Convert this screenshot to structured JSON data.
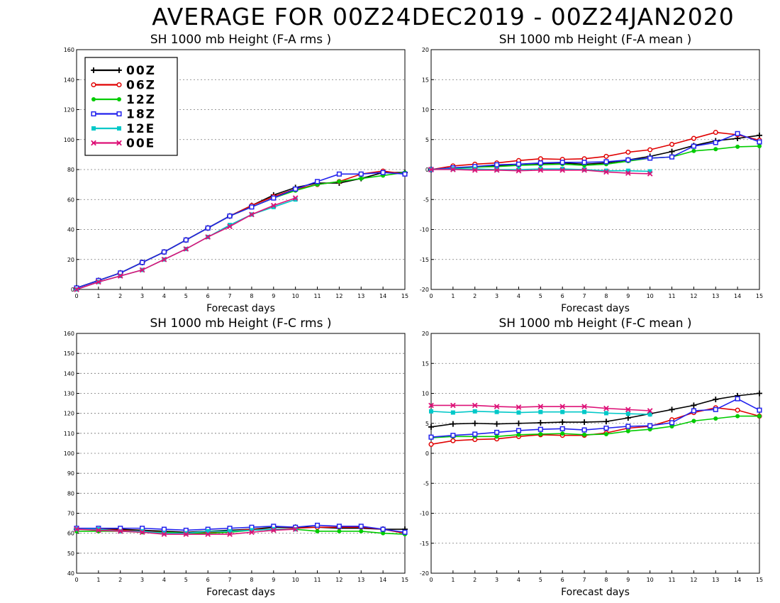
{
  "page": {
    "title": "AVERAGE FOR 00Z24DEC2019 - 00Z24JAN2020"
  },
  "colors": {
    "00Z": "#000000",
    "06Z": "#e00000",
    "12Z": "#00cc00",
    "18Z": "#2222ee",
    "12E": "#00c8c8",
    "00E": "#dd1177"
  },
  "legend": {
    "entries": [
      {
        "key": "00Z",
        "label": "00Z",
        "marker": "plus"
      },
      {
        "key": "06Z",
        "label": "06Z",
        "marker": "circle-open"
      },
      {
        "key": "12Z",
        "label": "12Z",
        "marker": "circle-filled"
      },
      {
        "key": "18Z",
        "label": "18Z",
        "marker": "square-open"
      },
      {
        "key": "12E",
        "label": "12E",
        "marker": "square-filled"
      },
      {
        "key": "00E",
        "label": "00E",
        "marker": "x"
      }
    ],
    "placement": "top-left of first panel"
  },
  "chart_data": [
    {
      "type": "line",
      "title": "SH 1000 mb Height (F-A rms )",
      "xlabel": "Forecast days",
      "ylabel": "",
      "xlim": [
        0,
        15
      ],
      "ylim": [
        0,
        160
      ],
      "xticks": [
        0,
        1,
        2,
        3,
        4,
        5,
        6,
        7,
        8,
        9,
        10,
        11,
        12,
        13,
        14,
        15
      ],
      "yticks": [
        0,
        20,
        40,
        60,
        80,
        100,
        120,
        140,
        160
      ],
      "grid": true,
      "legend": true,
      "series": [
        {
          "name": "00Z",
          "x": [
            0,
            1,
            2,
            3,
            4,
            5,
            6,
            7,
            8,
            9,
            10,
            11,
            12,
            13,
            14,
            15
          ],
          "values": [
            1,
            6,
            11,
            18,
            25,
            33,
            41,
            49,
            56,
            63,
            68,
            71,
            71,
            74,
            78,
            78
          ]
        },
        {
          "name": "06Z",
          "x": [
            0,
            1,
            2,
            3,
            4,
            5,
            6,
            7,
            8,
            9,
            10,
            11,
            12,
            13,
            14,
            15
          ],
          "values": [
            1,
            6,
            11,
            18,
            25,
            33,
            41,
            49,
            56,
            62,
            67,
            70,
            72,
            77,
            79,
            77
          ]
        },
        {
          "name": "12Z",
          "x": [
            0,
            1,
            2,
            3,
            4,
            5,
            6,
            7,
            8,
            9,
            10,
            11,
            12,
            13,
            14,
            15
          ],
          "values": [
            1,
            6,
            11,
            18,
            25,
            33,
            41,
            49,
            55,
            61,
            66,
            70,
            72,
            74,
            76,
            78
          ]
        },
        {
          "name": "18Z",
          "x": [
            0,
            1,
            2,
            3,
            4,
            5,
            6,
            7,
            8,
            9,
            10,
            11,
            12,
            13,
            14,
            15
          ],
          "values": [
            1,
            6,
            11,
            18,
            25,
            33,
            41,
            49,
            55,
            61,
            67,
            72,
            77,
            77,
            78,
            77
          ]
        },
        {
          "name": "12E",
          "x": [
            0,
            1,
            2,
            3,
            4,
            5,
            6,
            7,
            8,
            9,
            10
          ],
          "values": [
            0,
            5,
            9,
            13,
            20,
            27,
            35,
            43,
            50,
            55,
            60
          ]
        },
        {
          "name": "00E",
          "x": [
            0,
            1,
            2,
            3,
            4,
            5,
            6,
            7,
            8,
            9,
            10
          ],
          "values": [
            0,
            5,
            9,
            13,
            20,
            27,
            35,
            42,
            50,
            56,
            61
          ]
        }
      ]
    },
    {
      "type": "line",
      "title": "SH 1000 mb Height (F-A mean )",
      "xlabel": "Forecast days",
      "ylabel": "",
      "xlim": [
        0,
        15
      ],
      "ylim": [
        -20,
        20
      ],
      "xticks": [
        0,
        1,
        2,
        3,
        4,
        5,
        6,
        7,
        8,
        9,
        10,
        11,
        12,
        13,
        14,
        15
      ],
      "yticks": [
        -20,
        -15,
        -10,
        -5,
        0,
        5,
        10,
        15,
        20
      ],
      "grid": true,
      "legend": false,
      "series": [
        {
          "name": "00Z",
          "x": [
            0,
            1,
            2,
            3,
            4,
            5,
            6,
            7,
            8,
            9,
            10,
            11,
            12,
            13,
            14,
            15
          ],
          "values": [
            0,
            0.3,
            0.4,
            0.6,
            0.9,
            1.0,
            1.1,
            0.9,
            1.1,
            1.6,
            2.2,
            3.0,
            4.0,
            4.8,
            5.2,
            5.7
          ]
        },
        {
          "name": "06Z",
          "x": [
            0,
            1,
            2,
            3,
            4,
            5,
            6,
            7,
            8,
            9,
            10,
            11,
            12,
            13,
            14,
            15
          ],
          "values": [
            0,
            0.6,
            0.9,
            1.1,
            1.5,
            1.8,
            1.7,
            1.8,
            2.2,
            2.9,
            3.3,
            4.2,
            5.2,
            6.2,
            5.8,
            4.9
          ]
        },
        {
          "name": "12Z",
          "x": [
            0,
            1,
            2,
            3,
            4,
            5,
            6,
            7,
            8,
            9,
            10,
            11,
            12,
            13,
            14,
            15
          ],
          "values": [
            0,
            0.2,
            0.4,
            0.5,
            0.7,
            0.8,
            0.9,
            0.7,
            0.9,
            1.4,
            1.9,
            2.1,
            3.1,
            3.4,
            3.8,
            3.9
          ]
        },
        {
          "name": "18Z",
          "x": [
            0,
            1,
            2,
            3,
            4,
            5,
            6,
            7,
            8,
            9,
            10,
            11,
            12,
            13,
            14,
            15
          ],
          "values": [
            0,
            0.3,
            0.5,
            0.8,
            0.9,
            1.1,
            1.2,
            1.2,
            1.3,
            1.6,
            1.9,
            2.1,
            3.9,
            4.5,
            6.0,
            4.6
          ]
        },
        {
          "name": "12E",
          "x": [
            0,
            1,
            2,
            3,
            4,
            5,
            6,
            7,
            8,
            9,
            10
          ],
          "values": [
            0,
            0.1,
            0.1,
            0.0,
            0.0,
            0.1,
            0.1,
            0.0,
            -0.2,
            -0.2,
            -0.3
          ]
        },
        {
          "name": "00E",
          "x": [
            0,
            1,
            2,
            3,
            4,
            5,
            6,
            7,
            8,
            9,
            10
          ],
          "values": [
            0,
            0.0,
            -0.1,
            -0.1,
            -0.2,
            -0.1,
            -0.1,
            -0.1,
            -0.4,
            -0.6,
            -0.7
          ]
        }
      ]
    },
    {
      "type": "line",
      "title": "SH 1000 mb Height (F-C rms )",
      "xlabel": "Forecast days",
      "ylabel": "",
      "xlim": [
        0,
        15
      ],
      "ylim": [
        40,
        160
      ],
      "xticks": [
        0,
        1,
        2,
        3,
        4,
        5,
        6,
        7,
        8,
        9,
        10,
        11,
        12,
        13,
        14,
        15
      ],
      "yticks": [
        40,
        50,
        60,
        70,
        80,
        90,
        100,
        110,
        120,
        130,
        140,
        150,
        160
      ],
      "grid": true,
      "legend": false,
      "series": [
        {
          "name": "00Z",
          "x": [
            0,
            1,
            2,
            3,
            4,
            5,
            6,
            7,
            8,
            9,
            10,
            11,
            12,
            13,
            14,
            15
          ],
          "values": [
            62,
            62,
            62,
            61.5,
            61,
            60.5,
            61,
            61.5,
            62,
            63,
            63,
            63,
            62.5,
            62.5,
            62,
            62
          ]
        },
        {
          "name": "06Z",
          "x": [
            0,
            1,
            2,
            3,
            4,
            5,
            6,
            7,
            8,
            9,
            10,
            11,
            12,
            13,
            14,
            15
          ],
          "values": [
            62,
            62,
            61.5,
            61,
            60.5,
            60,
            60.5,
            61,
            62,
            62,
            62.5,
            63,
            63,
            63,
            62,
            60
          ]
        },
        {
          "name": "12Z",
          "x": [
            0,
            1,
            2,
            3,
            4,
            5,
            6,
            7,
            8,
            9,
            10,
            11,
            12,
            13,
            14,
            15
          ],
          "values": [
            61,
            61,
            61,
            60.5,
            60.5,
            60,
            60,
            60.5,
            61.5,
            62,
            62,
            61,
            61,
            61,
            60,
            59.5
          ]
        },
        {
          "name": "18Z",
          "x": [
            0,
            1,
            2,
            3,
            4,
            5,
            6,
            7,
            8,
            9,
            10,
            11,
            12,
            13,
            14,
            15
          ],
          "values": [
            62.5,
            62.5,
            62.5,
            62.5,
            62,
            61.5,
            62,
            62.5,
            63,
            63.5,
            63,
            64,
            63.5,
            63.5,
            62,
            60.5
          ]
        },
        {
          "name": "12E",
          "x": [
            0,
            1,
            2,
            3,
            4,
            5,
            6,
            7,
            8,
            9,
            10
          ],
          "values": [
            62,
            62,
            61,
            61,
            60,
            60,
            61,
            61,
            61.5,
            62,
            62
          ]
        },
        {
          "name": "00E",
          "x": [
            0,
            1,
            2,
            3,
            4,
            5,
            6,
            7,
            8,
            9,
            10
          ],
          "values": [
            62,
            61.5,
            61,
            60.5,
            59.5,
            59.5,
            59.5,
            59.5,
            60.5,
            61.5,
            62
          ]
        }
      ]
    },
    {
      "type": "line",
      "title": "SH 1000 mb Height (F-C mean )",
      "xlabel": "Forecast days",
      "ylabel": "",
      "xlim": [
        0,
        15
      ],
      "ylim": [
        -20,
        20
      ],
      "xticks": [
        0,
        1,
        2,
        3,
        4,
        5,
        6,
        7,
        8,
        9,
        10,
        11,
        12,
        13,
        14,
        15
      ],
      "yticks": [
        -20,
        -15,
        -10,
        -5,
        0,
        5,
        10,
        15,
        20
      ],
      "grid": true,
      "legend": false,
      "series": [
        {
          "name": "00Z",
          "x": [
            0,
            1,
            2,
            3,
            4,
            5,
            6,
            7,
            8,
            9,
            10,
            11,
            12,
            13,
            14,
            15
          ],
          "values": [
            4.4,
            4.9,
            5.0,
            4.9,
            5.0,
            5.1,
            5.2,
            5.2,
            5.3,
            5.9,
            6.6,
            7.3,
            8.0,
            9.0,
            9.6,
            10.0
          ]
        },
        {
          "name": "06Z",
          "x": [
            0,
            1,
            2,
            3,
            4,
            5,
            6,
            7,
            8,
            9,
            10,
            11,
            12,
            13,
            14,
            15
          ],
          "values": [
            1.5,
            2.1,
            2.3,
            2.4,
            2.8,
            3.1,
            3.0,
            3.0,
            3.4,
            4.2,
            4.5,
            5.6,
            6.8,
            7.6,
            7.2,
            6.2
          ]
        },
        {
          "name": "12Z",
          "x": [
            0,
            1,
            2,
            3,
            4,
            5,
            6,
            7,
            8,
            9,
            10,
            11,
            12,
            13,
            14,
            15
          ],
          "values": [
            2.6,
            2.8,
            2.8,
            2.8,
            3.1,
            3.2,
            3.3,
            3.1,
            3.2,
            3.7,
            4.0,
            4.5,
            5.4,
            5.8,
            6.2,
            6.2
          ]
        },
        {
          "name": "18Z",
          "x": [
            0,
            1,
            2,
            3,
            4,
            5,
            6,
            7,
            8,
            9,
            10,
            11,
            12,
            13,
            14,
            15
          ],
          "values": [
            2.7,
            3.0,
            3.2,
            3.5,
            3.8,
            4.0,
            4.1,
            3.9,
            4.2,
            4.5,
            4.6,
            5.1,
            7.1,
            7.3,
            9.1,
            7.2
          ]
        },
        {
          "name": "12E",
          "x": [
            0,
            1,
            2,
            3,
            4,
            5,
            6,
            7,
            8,
            9,
            10
          ],
          "values": [
            7.0,
            6.8,
            7.0,
            6.9,
            6.8,
            6.9,
            6.9,
            6.9,
            6.7,
            6.6,
            6.5
          ]
        },
        {
          "name": "00E",
          "x": [
            0,
            1,
            2,
            3,
            4,
            5,
            6,
            7,
            8,
            9,
            10
          ],
          "values": [
            8.0,
            8.0,
            8.0,
            7.8,
            7.7,
            7.8,
            7.8,
            7.8,
            7.5,
            7.3,
            7.1
          ]
        }
      ]
    }
  ]
}
